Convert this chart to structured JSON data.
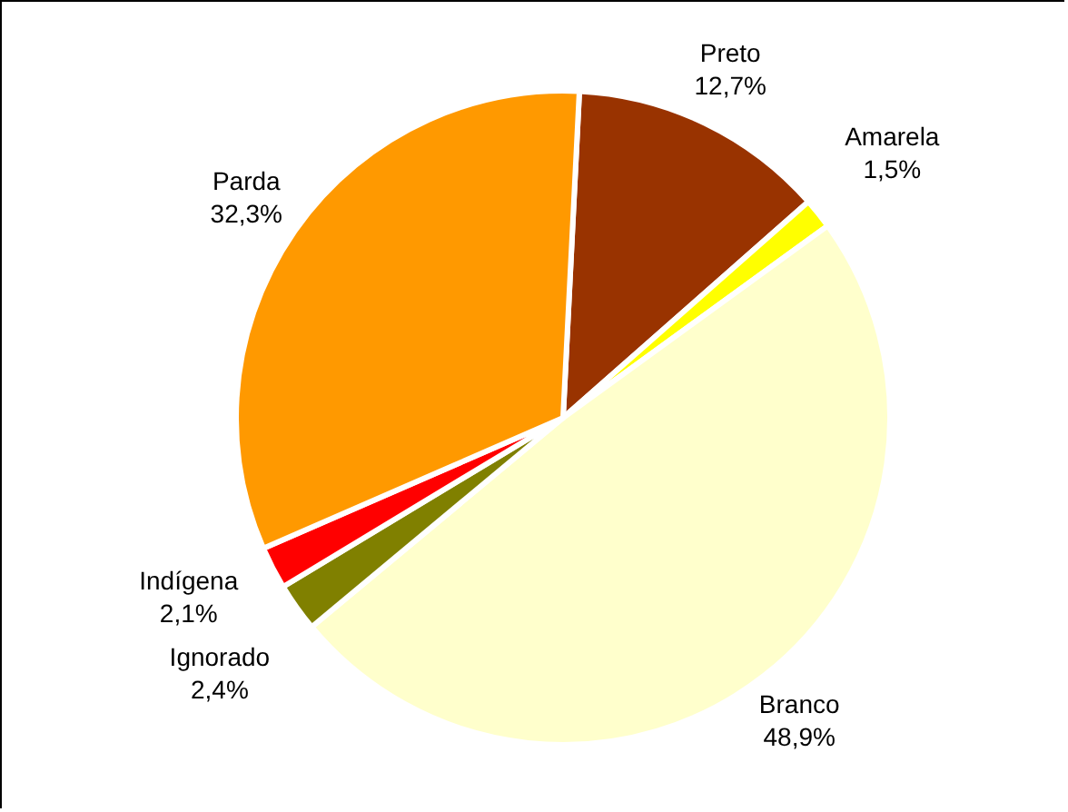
{
  "chart_data": {
    "type": "pie",
    "categories": [
      "Preto",
      "Amarela",
      "Branco",
      "Ignorado",
      "Indígena",
      "Parda"
    ],
    "values": [
      12.7,
      1.5,
      48.9,
      2.4,
      2.1,
      32.3
    ],
    "colors": [
      "#993300",
      "#ffff00",
      "#ffffcc",
      "#808000",
      "#ff0000",
      "#ff9900"
    ],
    "value_labels": [
      "12,7%",
      "1,5%",
      "48,9%",
      "2,4%",
      "2,1%",
      "32,3%"
    ]
  }
}
